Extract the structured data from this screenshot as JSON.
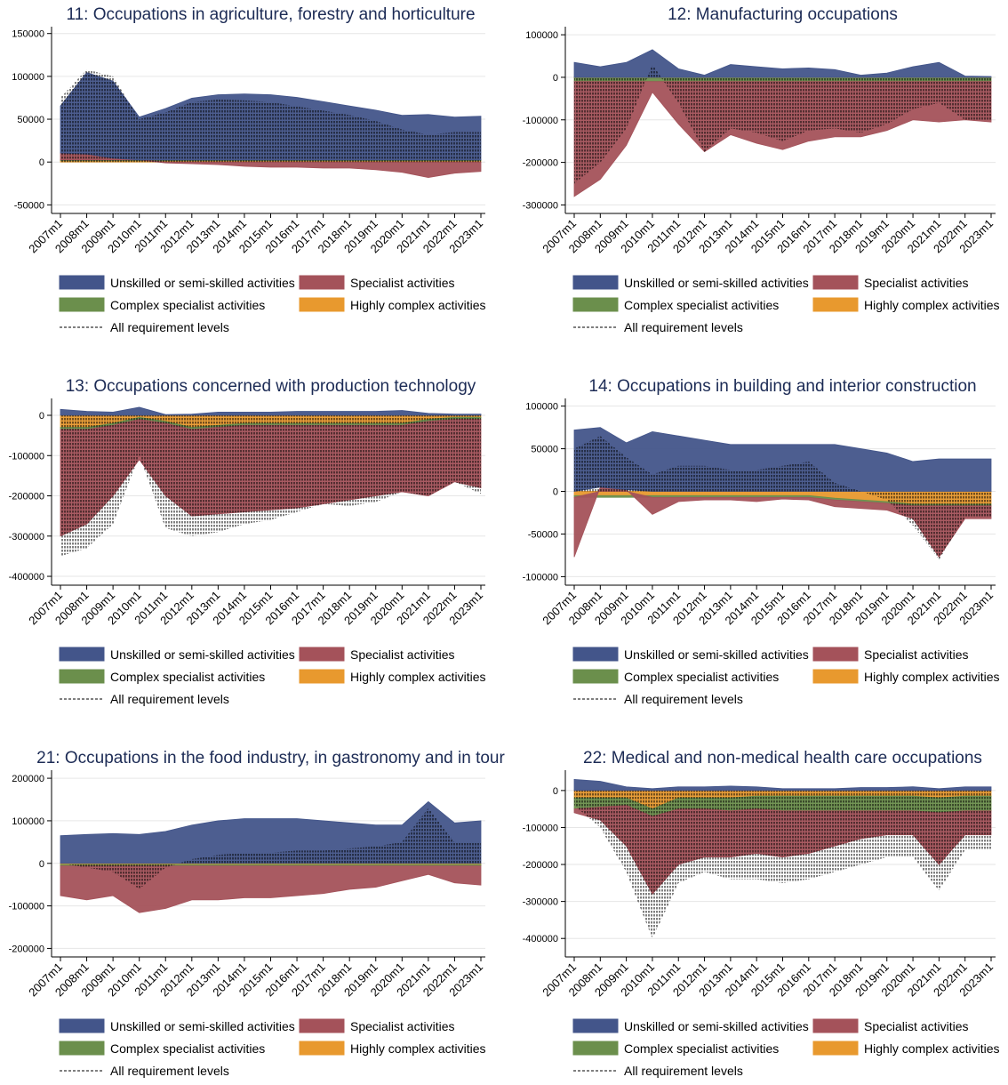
{
  "chart_data": [
    {
      "type": "area",
      "title": "11: Occupations in agriculture, forestry and horticulture",
      "categories": [
        "2007m1",
        "2008m1",
        "2009m1",
        "2010m1",
        "2011m1",
        "2012m1",
        "2013m1",
        "2014m1",
        "2015m1",
        "2016m1",
        "2017m1",
        "2018m1",
        "2019m1",
        "2020m1",
        "2021m1",
        "2022m1",
        "2023m1"
      ],
      "ylim": [
        -60000,
        158000
      ],
      "yticks": [
        -50000,
        0,
        50000,
        100000,
        150000
      ],
      "grid": true,
      "series": [
        {
          "name": "Unskilled or semi-skilled activities",
          "color": "#43558a",
          "values": [
            55000,
            95000,
            90000,
            50000,
            60000,
            72000,
            76000,
            77000,
            76000,
            73000,
            68000,
            63000,
            58000,
            52000,
            53000,
            50000,
            51000
          ]
        },
        {
          "name": "Specialist activities",
          "color": "#a4525a",
          "values": [
            8000,
            7000,
            2000,
            0,
            -1000,
            -2000,
            -3000,
            -5000,
            -6000,
            -6000,
            -7000,
            -7000,
            -9000,
            -12000,
            -18000,
            -13000,
            -11000
          ]
        },
        {
          "name": "Complex specialist activities",
          "color": "#6b8f4c",
          "values": [
            1000,
            1000,
            1000,
            1000,
            1000,
            1000,
            1000,
            1000,
            1000,
            1000,
            1000,
            1000,
            1000,
            1000,
            1000,
            1000,
            1000
          ]
        },
        {
          "name": "Highly complex activities",
          "color": "#e8992e",
          "values": [
            1500,
            1500,
            1500,
            1500,
            1500,
            1500,
            1500,
            1500,
            1500,
            1500,
            1500,
            1500,
            1500,
            1500,
            1500,
            1500,
            1500
          ]
        },
        {
          "name": "All requirement levels",
          "color": "#000000",
          "line_style": "dashed",
          "values": [
            75000,
            108000,
            100000,
            50000,
            58000,
            70000,
            73000,
            72000,
            70000,
            65000,
            60000,
            55000,
            48000,
            38000,
            32000,
            35000,
            35000
          ]
        }
      ]
    },
    {
      "type": "area",
      "title": "12: Manufacturing occupations",
      "categories": [
        "2007m1",
        "2008m1",
        "2009m1",
        "2010m1",
        "2011m1",
        "2012m1",
        "2013m1",
        "2014m1",
        "2015m1",
        "2016m1",
        "2017m1",
        "2018m1",
        "2019m1",
        "2020m1",
        "2021m1",
        "2022m1",
        "2023m1"
      ],
      "ylim": [
        -320000,
        119000
      ],
      "yticks": [
        -300000,
        -200000,
        -100000,
        0,
        100000
      ],
      "grid": true,
      "series": [
        {
          "name": "Unskilled or semi-skilled activities",
          "color": "#43558a",
          "values": [
            35000,
            25000,
            35000,
            65000,
            20000,
            5000,
            30000,
            25000,
            20000,
            22000,
            18000,
            5000,
            10000,
            25000,
            35000,
            3000,
            2000
          ]
        },
        {
          "name": "Specialist activities",
          "color": "#a4525a",
          "values": [
            -270000,
            -230000,
            -150000,
            -25000,
            -100000,
            -165000,
            -125000,
            -145000,
            -160000,
            -140000,
            -130000,
            -130000,
            -115000,
            -90000,
            -95000,
            -90000,
            -95000
          ]
        },
        {
          "name": "Complex specialist activities",
          "color": "#6b8f4c",
          "values": [
            -8000,
            -8000,
            -8000,
            -8000,
            -8000,
            -8000,
            -8000,
            -8000,
            -8000,
            -8000,
            -8000,
            -8000,
            -8000,
            -8000,
            -8000,
            -8000,
            -8000
          ]
        },
        {
          "name": "Highly complex activities",
          "color": "#e8992e",
          "values": [
            -2000,
            -2000,
            -2000,
            -2000,
            -2000,
            -2000,
            -2000,
            -2000,
            -2000,
            -2000,
            -2000,
            -2000,
            -2000,
            -2000,
            -2000,
            -2000,
            -2000
          ]
        },
        {
          "name": "All requirement levels",
          "color": "#000000",
          "line_style": "dashed",
          "values": [
            -250000,
            -200000,
            -120000,
            30000,
            -60000,
            -175000,
            -120000,
            -130000,
            -150000,
            -125000,
            -120000,
            -130000,
            -110000,
            -75000,
            -60000,
            -100000,
            -100000
          ]
        }
      ]
    },
    {
      "type": "area",
      "title": "13: Occupations concerned with production technology",
      "categories": [
        "2007m1",
        "2008m1",
        "2009m1",
        "2010m1",
        "2011m1",
        "2012m1",
        "2013m1",
        "2014m1",
        "2015m1",
        "2016m1",
        "2017m1",
        "2018m1",
        "2019m1",
        "2020m1",
        "2021m1",
        "2022m1",
        "2023m1"
      ],
      "ylim": [
        -422000,
        42000
      ],
      "yticks": [
        -400000,
        -300000,
        -200000,
        -100000,
        0
      ],
      "grid": true,
      "series": [
        {
          "name": "Unskilled or semi-skilled activities",
          "color": "#43558a",
          "values": [
            15000,
            10000,
            8000,
            20000,
            2000,
            3000,
            8000,
            8000,
            8000,
            10000,
            10000,
            10000,
            10000,
            12000,
            5000,
            3000,
            3000
          ]
        },
        {
          "name": "Specialist activities",
          "color": "#a4525a",
          "values": [
            -265000,
            -235000,
            -175000,
            -100000,
            -180000,
            -215000,
            -215000,
            -215000,
            -210000,
            -205000,
            -195000,
            -185000,
            -175000,
            -165000,
            -185000,
            -155000,
            -170000
          ]
        },
        {
          "name": "Complex specialist activities",
          "color": "#6b8f4c",
          "values": [
            -5000,
            -5000,
            -5000,
            -5000,
            -5000,
            -5000,
            -5000,
            -5000,
            -5000,
            -5000,
            -5000,
            -5000,
            -5000,
            -5000,
            -5000,
            -5000,
            -5000
          ]
        },
        {
          "name": "Highly complex activities",
          "color": "#e8992e",
          "values": [
            -30000,
            -30000,
            -20000,
            -5000,
            -15000,
            -30000,
            -25000,
            -20000,
            -20000,
            -20000,
            -20000,
            -20000,
            -20000,
            -20000,
            -10000,
            -5000,
            -5000
          ]
        },
        {
          "name": "All requirement levels",
          "color": "#000000",
          "line_style": "dashed",
          "values": [
            -350000,
            -330000,
            -270000,
            -100000,
            -280000,
            -300000,
            -290000,
            -270000,
            -260000,
            -240000,
            -220000,
            -225000,
            -215000,
            -190000,
            -200000,
            -165000,
            -195000
          ]
        }
      ]
    },
    {
      "type": "area",
      "title": "14: Occupations in building and interior construction",
      "categories": [
        "2007m1",
        "2008m1",
        "2009m1",
        "2010m1",
        "2011m1",
        "2012m1",
        "2013m1",
        "2014m1",
        "2015m1",
        "2016m1",
        "2017m1",
        "2018m1",
        "2019m1",
        "2020m1",
        "2021m1",
        "2022m1",
        "2023m1"
      ],
      "ylim": [
        -110000,
        109000
      ],
      "yticks": [
        -100000,
        -50000,
        0,
        50000,
        100000
      ],
      "grid": true,
      "series": [
        {
          "name": "Unskilled or semi-skilled activities",
          "color": "#43558a",
          "values": [
            72000,
            70000,
            55000,
            70000,
            65000,
            60000,
            55000,
            55000,
            55000,
            55000,
            55000,
            50000,
            45000,
            35000,
            38000,
            38000,
            38000
          ]
        },
        {
          "name": "Specialist activities",
          "color": "#a4525a",
          "values": [
            -70000,
            5000,
            2000,
            -20000,
            -5000,
            -3000,
            -3000,
            -5000,
            -2000,
            -3000,
            -8000,
            -8000,
            -8000,
            -15000,
            -60000,
            -15000,
            -15000
          ]
        },
        {
          "name": "Complex specialist activities",
          "color": "#6b8f4c",
          "values": [
            -2000,
            -2000,
            -2000,
            -2000,
            -2000,
            -2000,
            -2000,
            -2000,
            -2000,
            -2000,
            -2000,
            -2000,
            -2000,
            -2000,
            -2000,
            -2000,
            -2000
          ]
        },
        {
          "name": "Highly complex activities",
          "color": "#e8992e",
          "values": [
            -5000,
            -5000,
            -5000,
            -5000,
            -5000,
            -5000,
            -5000,
            -5000,
            -5000,
            -5000,
            -8000,
            -10000,
            -12000,
            -15000,
            -15000,
            -15000,
            -15000
          ]
        },
        {
          "name": "All requirement levels",
          "color": "#000000",
          "line_style": "dashed",
          "values": [
            50000,
            65000,
            40000,
            20000,
            30000,
            30000,
            25000,
            25000,
            30000,
            35000,
            10000,
            0,
            -10000,
            -40000,
            -80000,
            -30000,
            -30000
          ]
        }
      ]
    },
    {
      "type": "area",
      "title": "21: Occupations in the food industry, in gastronomy and in tour",
      "categories": [
        "2007m1",
        "2008m1",
        "2009m1",
        "2010m1",
        "2011m1",
        "2012m1",
        "2013m1",
        "2014m1",
        "2015m1",
        "2016m1",
        "2017m1",
        "2018m1",
        "2019m1",
        "2020m1",
        "2021m1",
        "2022m1",
        "2023m1"
      ],
      "ylim": [
        -220000,
        219000
      ],
      "yticks": [
        -200000,
        -100000,
        0,
        100000,
        200000
      ],
      "grid": true,
      "series": [
        {
          "name": "Unskilled or semi-skilled activities",
          "color": "#43558a",
          "values": [
            65000,
            68000,
            70000,
            68000,
            75000,
            90000,
            100000,
            105000,
            105000,
            105000,
            100000,
            95000,
            90000,
            90000,
            145000,
            95000,
            100000
          ]
        },
        {
          "name": "Specialist activities",
          "color": "#a4525a",
          "values": [
            -70000,
            -80000,
            -70000,
            -110000,
            -100000,
            -80000,
            -80000,
            -75000,
            -75000,
            -70000,
            -65000,
            -55000,
            -50000,
            -35000,
            -20000,
            -40000,
            -45000
          ]
        },
        {
          "name": "Complex specialist activities",
          "color": "#6b8f4c",
          "values": [
            -3000,
            -3000,
            -3000,
            -3000,
            -3000,
            -3000,
            -3000,
            -3000,
            -3000,
            -3000,
            -3000,
            -3000,
            -3000,
            -3000,
            -3000,
            -3000,
            -3000
          ]
        },
        {
          "name": "Highly complex activities",
          "color": "#e8992e",
          "values": [
            -3000,
            -3000,
            -3000,
            -3000,
            -3000,
            -3000,
            -3000,
            -3000,
            -3000,
            -3000,
            -3000,
            -3000,
            -3000,
            -3000,
            -3000,
            -3000,
            -3000
          ]
        },
        {
          "name": "All requirement levels",
          "color": "#000000",
          "line_style": "dashed",
          "values": [
            0,
            -10000,
            -20000,
            -60000,
            -10000,
            10000,
            20000,
            25000,
            25000,
            30000,
            30000,
            35000,
            40000,
            50000,
            130000,
            50000,
            50000
          ]
        }
      ]
    },
    {
      "type": "area",
      "title": "22: Medical and non-medical health care occupations",
      "categories": [
        "2007m1",
        "2008m1",
        "2009m1",
        "2010m1",
        "2011m1",
        "2012m1",
        "2013m1",
        "2014m1",
        "2015m1",
        "2016m1",
        "2017m1",
        "2018m1",
        "2019m1",
        "2020m1",
        "2021m1",
        "2022m1",
        "2023m1"
      ],
      "ylim": [
        -450000,
        55000
      ],
      "yticks": [
        -400000,
        -300000,
        -200000,
        -100000,
        0
      ],
      "grid": true,
      "series": [
        {
          "name": "Unskilled or semi-skilled activities",
          "color": "#43558a",
          "values": [
            30000,
            25000,
            10000,
            5000,
            10000,
            10000,
            12000,
            10000,
            5000,
            5000,
            5000,
            8000,
            8000,
            10000,
            5000,
            10000,
            10000
          ]
        },
        {
          "name": "Specialist activities",
          "color": "#a4525a",
          "values": [
            -10000,
            -35000,
            -110000,
            -210000,
            -150000,
            -130000,
            -125000,
            -120000,
            -125000,
            -115000,
            -95000,
            -75000,
            -65000,
            -65000,
            -140000,
            -65000,
            -65000
          ]
        },
        {
          "name": "Complex specialist activities",
          "color": "#6b8f4c",
          "values": [
            -30000,
            -25000,
            -20000,
            -20000,
            -30000,
            -30000,
            -35000,
            -35000,
            -40000,
            -40000,
            -40000,
            -40000,
            -40000,
            -40000,
            -40000,
            -40000,
            -40000
          ]
        },
        {
          "name": "Highly complex activities",
          "color": "#e8992e",
          "values": [
            -20000,
            -20000,
            -20000,
            -50000,
            -20000,
            -20000,
            -20000,
            -15000,
            -15000,
            -15000,
            -15000,
            -15000,
            -15000,
            -15000,
            -20000,
            -15000,
            -15000
          ]
        },
        {
          "name": "All requirement levels",
          "color": "#000000",
          "line_style": "dashed",
          "values": [
            -40000,
            -100000,
            -220000,
            -400000,
            -250000,
            -220000,
            -240000,
            -240000,
            -250000,
            -240000,
            -220000,
            -200000,
            -180000,
            -180000,
            -270000,
            -160000,
            -160000
          ]
        }
      ]
    }
  ]
}
